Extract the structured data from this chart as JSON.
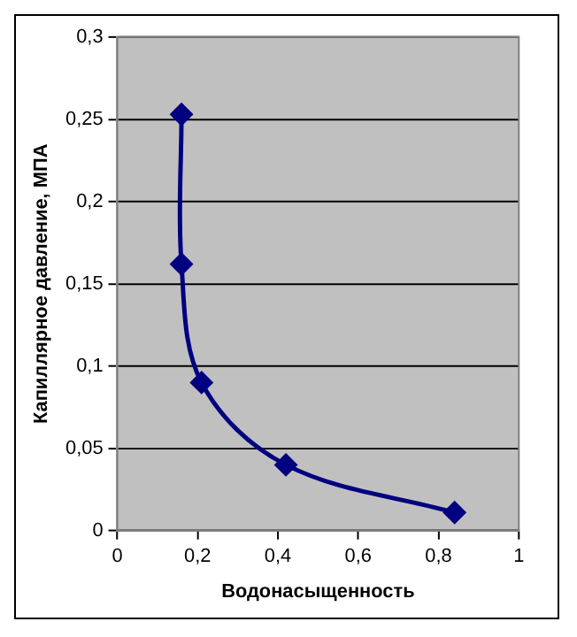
{
  "chart_data": {
    "type": "line",
    "xlabel": "Водонасыщенность",
    "ylabel": "Капиллярное давление, МПА",
    "x": [
      0.16,
      0.16,
      0.21,
      0.42,
      0.84
    ],
    "series": [
      {
        "color": "#000080",
        "values": [
          0.253,
          0.162,
          0.09,
          0.04,
          0.011
        ]
      }
    ],
    "xlim": [
      0,
      1
    ],
    "xticks": [
      0,
      {
        "value": 0.2,
        "label": "0,2"
      },
      {
        "value": 0.4,
        "label": "0,4"
      },
      {
        "value": 0.6,
        "label": "0,6"
      },
      {
        "value": 0.8,
        "label": "0,8"
      },
      1
    ],
    "ylim": [
      0,
      0.3
    ],
    "yticks": [
      0,
      {
        "value": 0.05,
        "label": "0,05"
      },
      {
        "value": 0.1,
        "label": "0,1"
      },
      {
        "value": 0.15,
        "label": "0,15"
      },
      {
        "value": 0.2,
        "label": "0,2"
      },
      {
        "value": 0.25,
        "label": "0,25"
      },
      {
        "value": 0.3,
        "label": "0,3"
      }
    ],
    "grid": "y",
    "legend": false,
    "marker": "diamond",
    "line_style": "solid"
  }
}
